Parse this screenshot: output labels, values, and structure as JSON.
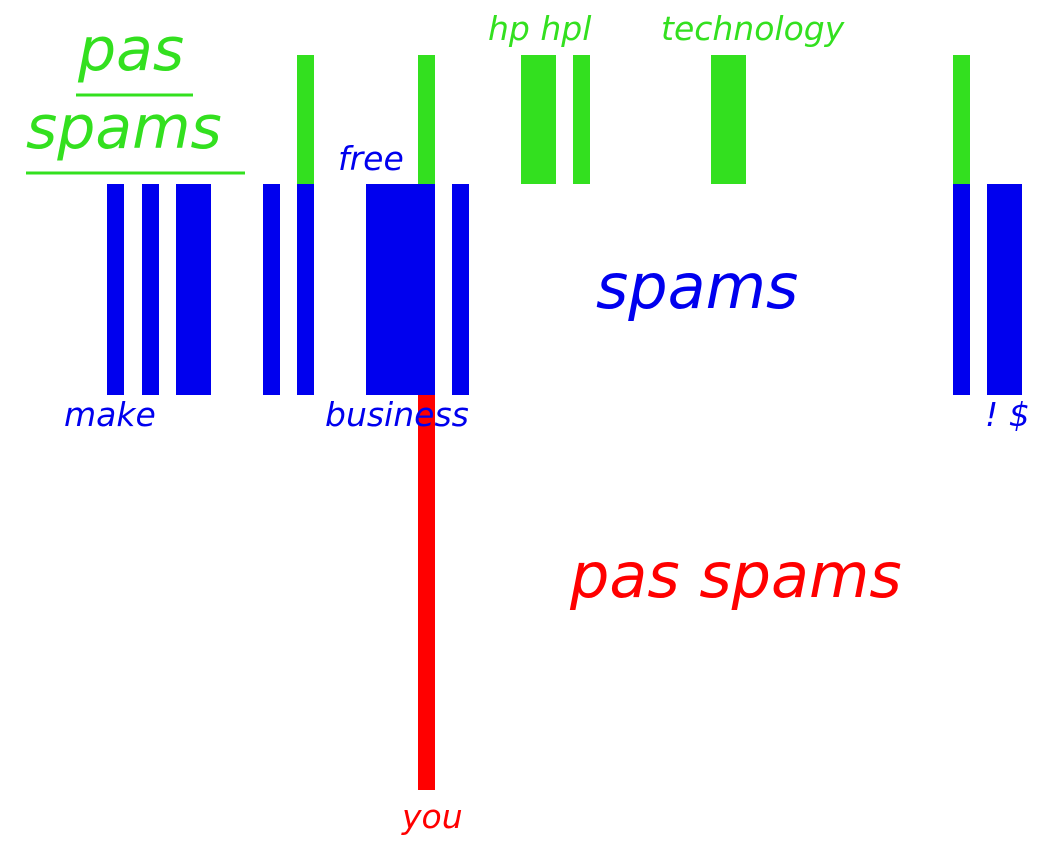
{
  "colors": {
    "pas_spams": "#33e01f",
    "spams": "#0000ee",
    "you_branch": "#ff0000",
    "background": "#ffffff"
  },
  "labels": {
    "top_left_title_line1": "pas",
    "top_left_title_line2": "spams",
    "green_words_a": "hp hpl",
    "green_words_b": "technology",
    "blue_word_free": "free",
    "blue_class": "spams",
    "blue_words_make": "make",
    "blue_words_business": "business",
    "blue_words_symbols": "! $",
    "red_class": "pas spams",
    "red_word_you": "you"
  }
}
